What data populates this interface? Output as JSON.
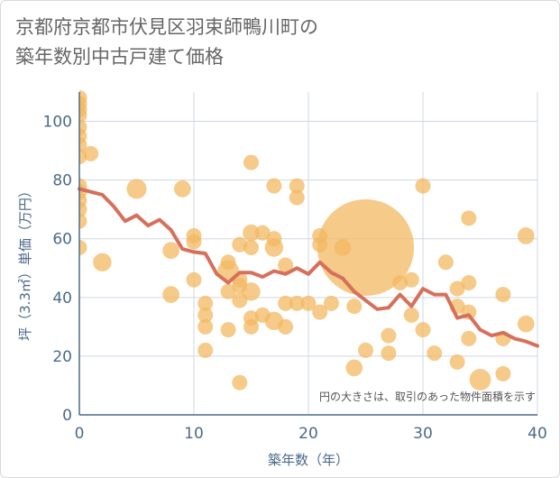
{
  "title_lines": [
    "京都府京都市伏見区羽束師鴨川町の",
    "築年数別中古戸建て価格"
  ],
  "note": "円の大きさは、取引のあった物件面積を示す",
  "colors": {
    "bubble": "#f3b861",
    "line": "#d6705a",
    "grid": "#cfd8e3",
    "axis": "#4a6a8a"
  },
  "chart_data": {
    "type": "scatter",
    "title": "京都府京都市伏見区羽束師鴨川町の築年数別中古戸建て価格",
    "xlabel": "築年数（年）",
    "ylabel": "坪（3.3㎡）単価（万円）",
    "xlim": [
      0,
      40
    ],
    "ylim": [
      0,
      110
    ],
    "xticks": [
      0,
      10,
      20,
      30,
      40
    ],
    "yticks": [
      0,
      20,
      40,
      60,
      80,
      100
    ],
    "grid": true,
    "points": [
      {
        "x": 0,
        "y": 108,
        "s": 1
      },
      {
        "x": 0,
        "y": 106,
        "s": 1
      },
      {
        "x": 0,
        "y": 104,
        "s": 1
      },
      {
        "x": 0,
        "y": 102,
        "s": 1
      },
      {
        "x": 0,
        "y": 98,
        "s": 1
      },
      {
        "x": 0,
        "y": 95,
        "s": 1
      },
      {
        "x": 0,
        "y": 92,
        "s": 1
      },
      {
        "x": 0,
        "y": 88,
        "s": 1
      },
      {
        "x": 0,
        "y": 78,
        "s": 1
      },
      {
        "x": 0,
        "y": 76,
        "s": 1
      },
      {
        "x": 0,
        "y": 73,
        "s": 1
      },
      {
        "x": 0,
        "y": 70,
        "s": 1
      },
      {
        "x": 0,
        "y": 66,
        "s": 1
      },
      {
        "x": 0,
        "y": 57,
        "s": 1
      },
      {
        "x": 1,
        "y": 89,
        "s": 1
      },
      {
        "x": 2,
        "y": 52,
        "s": 1.2
      },
      {
        "x": 5,
        "y": 77,
        "s": 1.3
      },
      {
        "x": 8,
        "y": 41,
        "s": 1.1
      },
      {
        "x": 8,
        "y": 56,
        "s": 1.1
      },
      {
        "x": 9,
        "y": 77,
        "s": 1.1
      },
      {
        "x": 10,
        "y": 61,
        "s": 1
      },
      {
        "x": 10,
        "y": 59,
        "s": 1
      },
      {
        "x": 10,
        "y": 46,
        "s": 1
      },
      {
        "x": 11,
        "y": 38,
        "s": 1
      },
      {
        "x": 11,
        "y": 34,
        "s": 1
      },
      {
        "x": 11,
        "y": 30,
        "s": 1
      },
      {
        "x": 11,
        "y": 22,
        "s": 1
      },
      {
        "x": 13,
        "y": 52,
        "s": 1
      },
      {
        "x": 13,
        "y": 49,
        "s": 1.4
      },
      {
        "x": 13,
        "y": 42,
        "s": 1
      },
      {
        "x": 13,
        "y": 29,
        "s": 1
      },
      {
        "x": 14,
        "y": 58,
        "s": 1
      },
      {
        "x": 14,
        "y": 46,
        "s": 1
      },
      {
        "x": 14,
        "y": 44,
        "s": 1
      },
      {
        "x": 14,
        "y": 39,
        "s": 1
      },
      {
        "x": 14,
        "y": 11,
        "s": 1
      },
      {
        "x": 15,
        "y": 86,
        "s": 1
      },
      {
        "x": 15,
        "y": 62,
        "s": 1.1
      },
      {
        "x": 15,
        "y": 57,
        "s": 1
      },
      {
        "x": 15,
        "y": 42,
        "s": 1.2
      },
      {
        "x": 15,
        "y": 33,
        "s": 1
      },
      {
        "x": 15,
        "y": 30,
        "s": 1
      },
      {
        "x": 16,
        "y": 62,
        "s": 1
      },
      {
        "x": 16,
        "y": 34,
        "s": 1
      },
      {
        "x": 17,
        "y": 78,
        "s": 1
      },
      {
        "x": 17,
        "y": 60,
        "s": 1
      },
      {
        "x": 17,
        "y": 57,
        "s": 1.2
      },
      {
        "x": 17,
        "y": 32,
        "s": 1.2
      },
      {
        "x": 18,
        "y": 51,
        "s": 1
      },
      {
        "x": 18,
        "y": 38,
        "s": 1
      },
      {
        "x": 18,
        "y": 30,
        "s": 1
      },
      {
        "x": 19,
        "y": 78,
        "s": 1
      },
      {
        "x": 19,
        "y": 74,
        "s": 1
      },
      {
        "x": 19,
        "y": 38,
        "s": 1
      },
      {
        "x": 20,
        "y": 38,
        "s": 1
      },
      {
        "x": 21,
        "y": 61,
        "s": 1
      },
      {
        "x": 21,
        "y": 58,
        "s": 1
      },
      {
        "x": 21,
        "y": 35,
        "s": 1
      },
      {
        "x": 22,
        "y": 38,
        "s": 1
      },
      {
        "x": 23,
        "y": 57,
        "s": 1.1
      },
      {
        "x": 24,
        "y": 37,
        "s": 1
      },
      {
        "x": 24,
        "y": 16,
        "s": 1.1
      },
      {
        "x": 25,
        "y": 57,
        "s": 6.3
      },
      {
        "x": 25,
        "y": 22,
        "s": 1
      },
      {
        "x": 27,
        "y": 27,
        "s": 1
      },
      {
        "x": 27,
        "y": 21,
        "s": 1
      },
      {
        "x": 28,
        "y": 45,
        "s": 1
      },
      {
        "x": 29,
        "y": 46,
        "s": 1
      },
      {
        "x": 29,
        "y": 34,
        "s": 1
      },
      {
        "x": 30,
        "y": 78,
        "s": 1
      },
      {
        "x": 30,
        "y": 29,
        "s": 1
      },
      {
        "x": 31,
        "y": 21,
        "s": 1
      },
      {
        "x": 32,
        "y": 52,
        "s": 1
      },
      {
        "x": 33,
        "y": 43,
        "s": 1
      },
      {
        "x": 33,
        "y": 37,
        "s": 1
      },
      {
        "x": 33,
        "y": 18,
        "s": 1
      },
      {
        "x": 34,
        "y": 67,
        "s": 1
      },
      {
        "x": 34,
        "y": 45,
        "s": 1
      },
      {
        "x": 34,
        "y": 35,
        "s": 1
      },
      {
        "x": 34,
        "y": 26,
        "s": 1
      },
      {
        "x": 35,
        "y": 12,
        "s": 1.4
      },
      {
        "x": 37,
        "y": 41,
        "s": 1
      },
      {
        "x": 37,
        "y": 26,
        "s": 1
      },
      {
        "x": 37,
        "y": 14,
        "s": 1
      },
      {
        "x": 39,
        "y": 61,
        "s": 1.1
      },
      {
        "x": 39,
        "y": 31,
        "s": 1.1
      }
    ],
    "trend": {
      "x": [
        0,
        1,
        2,
        3,
        4,
        5,
        6,
        7,
        8,
        9,
        10,
        11,
        12,
        13,
        14,
        15,
        16,
        17,
        18,
        19,
        20,
        21,
        22,
        23,
        24,
        25,
        26,
        27,
        28,
        29,
        30,
        31,
        32,
        33,
        34,
        35,
        36,
        37,
        38,
        39,
        40
      ],
      "y": [
        77,
        76,
        75,
        71,
        66,
        68,
        64.5,
        66.5,
        63,
        56.5,
        55.5,
        55,
        48,
        45,
        48.5,
        48.5,
        47,
        49,
        48,
        50,
        48,
        52,
        48.5,
        46.5,
        42,
        39,
        36,
        36.5,
        41,
        37,
        43,
        41,
        41,
        33,
        34,
        29,
        27,
        28,
        26,
        25,
        23.5
      ]
    }
  }
}
